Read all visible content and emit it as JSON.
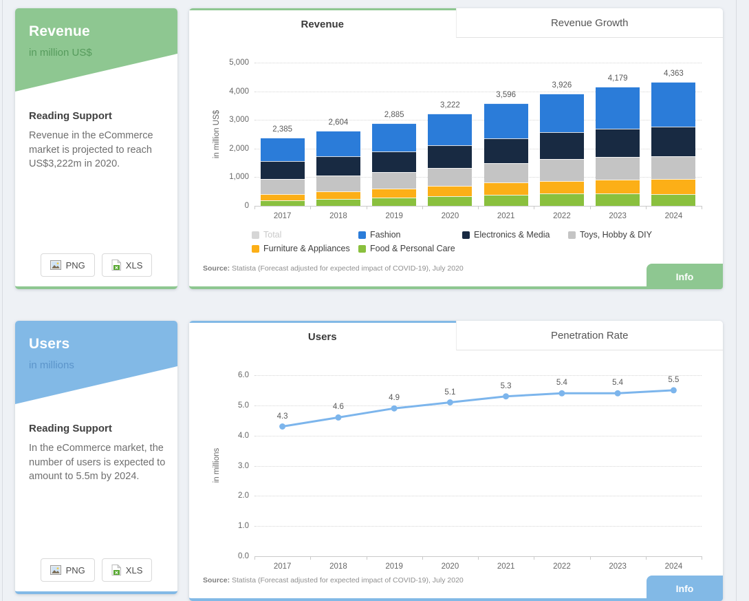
{
  "revenue": {
    "summary": {
      "title": "Revenue",
      "subtitle": "in million US$",
      "reading_title": "Reading Support",
      "reading_text": "Revenue in the eCommerce market is projected to reach US$3,222m in 2020.",
      "png_label": "PNG",
      "xls_label": "XLS"
    },
    "tabs": {
      "active": "Revenue",
      "inactive": "Revenue Growth"
    },
    "source_label": "Source:",
    "source_text": "Statista (Forecast adjusted for expected impact of COVID-19), July 2020",
    "info_label": "Info",
    "accent_color": "#8ec791"
  },
  "users": {
    "summary": {
      "title": "Users",
      "subtitle": "in millions",
      "reading_title": "Reading Support",
      "reading_text": "In the eCommerce market, the number of users is expected to amount to 5.5m by 2024.",
      "png_label": "PNG",
      "xls_label": "XLS"
    },
    "tabs": {
      "active": "Users",
      "inactive": "Penetration Rate"
    },
    "source_label": "Source:",
    "source_text": "Statista (Forecast adjusted for expected impact of COVID-19), July 2020",
    "info_label": "Info",
    "accent_color": "#82b9e6"
  },
  "chart_data": [
    {
      "type": "bar",
      "stacked": true,
      "title": "Revenue",
      "ylabel": "in million US$",
      "ylim": [
        0,
        5000
      ],
      "yticks": [
        "0",
        "1,000",
        "2,000",
        "3,000",
        "4,000",
        "5,000"
      ],
      "grid": "dotted horizontal",
      "categories": [
        "2017",
        "2018",
        "2019",
        "2020",
        "2021",
        "2022",
        "2023",
        "2024"
      ],
      "totals": [
        2385,
        2604,
        2885,
        3222,
        3596,
        3926,
        4179,
        4363
      ],
      "total_labels": [
        "2,385",
        "2,604",
        "2,885",
        "3,222",
        "3,596",
        "3,926",
        "4,179",
        "4,363"
      ],
      "series": [
        {
          "name": "Food & Personal Care",
          "color": "#8ac03e",
          "values": [
            200,
            235,
            278,
            330,
            391,
            432,
            428,
            415
          ]
        },
        {
          "name": "Furniture & Appliances",
          "color": "#fcaf17",
          "values": [
            216,
            257,
            308,
            370,
            442,
            439,
            491,
            538
          ]
        },
        {
          "name": "Toys, Hobby & DIY",
          "color": "#c4c4c4",
          "values": [
            520,
            546,
            580,
            620,
            662,
            769,
            792,
            799
          ]
        },
        {
          "name": "Electronics & Media",
          "color": "#182a42",
          "values": [
            625,
            668,
            725,
            792,
            865,
            936,
            996,
            1040
          ]
        },
        {
          "name": "Fashion",
          "color": "#2b7cd9",
          "values": [
            824,
            898,
            994,
            1110,
            1236,
            1350,
            1472,
            1571
          ]
        }
      ],
      "legend_position": "bottom",
      "legend": [
        {
          "label": "Total",
          "color": "#d6d6d6",
          "muted": true
        },
        {
          "label": "Fashion",
          "color": "#2b7cd9",
          "muted": false
        },
        {
          "label": "Electronics & Media",
          "color": "#182a42",
          "muted": false
        },
        {
          "label": "Toys, Hobby & DIY",
          "color": "#c4c4c4",
          "muted": false
        },
        {
          "label": "Furniture & Appliances",
          "color": "#fcaf17",
          "muted": false
        },
        {
          "label": "Food & Personal Care",
          "color": "#8ac03e",
          "muted": false
        }
      ]
    },
    {
      "type": "line",
      "title": "Users",
      "ylabel": "in millions",
      "ylim": [
        0,
        6
      ],
      "yticks": [
        "0.0",
        "1.0",
        "2.0",
        "3.0",
        "4.0",
        "5.0",
        "6.0"
      ],
      "grid": "dotted horizontal",
      "categories": [
        "2017",
        "2018",
        "2019",
        "2020",
        "2021",
        "2022",
        "2023",
        "2024"
      ],
      "values": [
        4.3,
        4.6,
        4.9,
        5.1,
        5.3,
        5.4,
        5.4,
        5.5
      ],
      "value_labels": [
        "4.3",
        "4.6",
        "4.9",
        "5.1",
        "5.3",
        "5.4",
        "5.4",
        "5.5"
      ],
      "color": "#7cb5ec",
      "legend_position": "none"
    }
  ]
}
